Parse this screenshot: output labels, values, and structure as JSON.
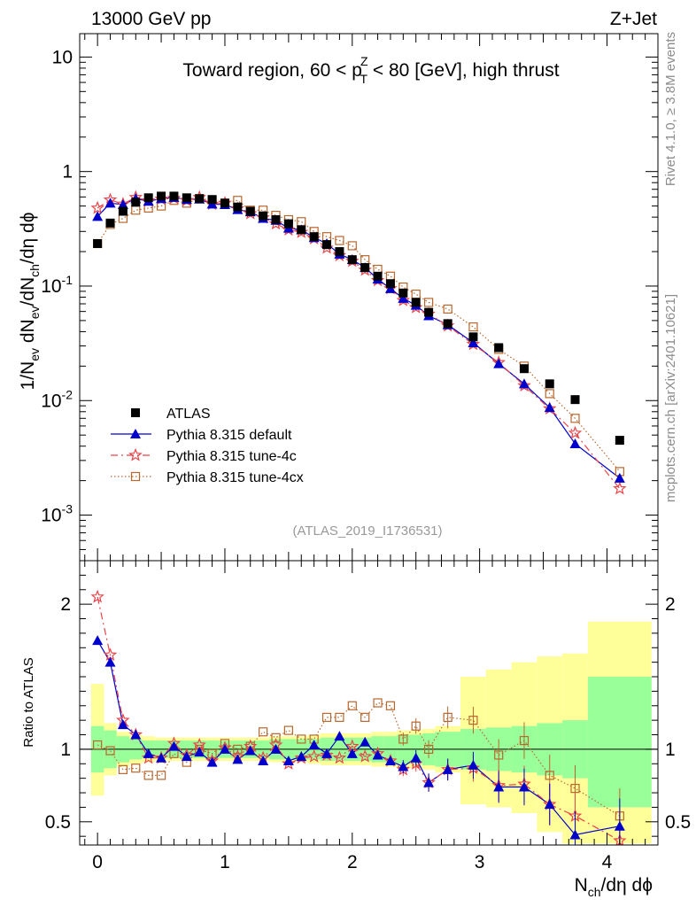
{
  "header": {
    "energy_label": "13000 GeV pp",
    "process_label": "Z+Jet"
  },
  "side_labels": {
    "rivet": "Rivet 4.1.0, ≥ 3.8M events",
    "source": "mcplots.cern.ch [arXiv:2401.10621]"
  },
  "colors": {
    "atlas": "#000000",
    "default": "#0000cc",
    "tune4c": "#e8454a",
    "tune4cx": "#b8672e",
    "band_inner": "#99ff99",
    "band_outer": "#ffff99"
  },
  "chart_data": [
    {
      "type": "scatter",
      "panel": "main",
      "title": "Toward region, 60 < p_T^Z < 80 [GeV], high thrust",
      "title_parts": [
        "Toward region, 60 < p",
        "Z",
        "T",
        " < 80 [GeV], high thrust"
      ],
      "ylabel": "1/N_ev dN_ev/dN_ch/dη dϕ",
      "ylabel_parts": [
        "1/N",
        "ev",
        " dN",
        "ev",
        "/dN",
        "ch",
        "/dη dϕ"
      ],
      "watermark": "(ATLAS_2019_I1736531)",
      "yscale": "log",
      "xlim": [
        -0.14,
        4.4
      ],
      "ylim": [
        0.0004,
        16
      ],
      "yticks": [
        {
          "v": 0.001,
          "base": "10",
          "exp": "-3"
        },
        {
          "v": 0.01,
          "base": "10",
          "exp": "-2"
        },
        {
          "v": 0.1,
          "base": "10",
          "exp": "-1"
        },
        {
          "v": 1,
          "base": "1",
          "exp": ""
        },
        {
          "v": 10,
          "base": "10",
          "exp": ""
        }
      ],
      "legend": [
        {
          "key": "atlas",
          "label": "ATLAS"
        },
        {
          "key": "default",
          "label": "Pythia 8.315 default"
        },
        {
          "key": "tune4c",
          "label": "Pythia 8.315 tune-4c"
        },
        {
          "key": "tune4cx",
          "label": "Pythia 8.315 tune-4cx"
        }
      ],
      "x": [
        0.0,
        0.1,
        0.2,
        0.3,
        0.4,
        0.5,
        0.6,
        0.7,
        0.8,
        0.9,
        1.0,
        1.1,
        1.2,
        1.3,
        1.4,
        1.5,
        1.6,
        1.7,
        1.8,
        1.9,
        2.0,
        2.1,
        2.2,
        2.3,
        2.4,
        2.5,
        2.6,
        2.75,
        2.95,
        3.15,
        3.35,
        3.55,
        3.75,
        4.1
      ],
      "series": [
        {
          "name": "ATLAS",
          "key": "atlas",
          "values": [
            0.235,
            0.355,
            0.45,
            0.54,
            0.59,
            0.61,
            0.61,
            0.59,
            0.58,
            0.57,
            0.53,
            0.49,
            0.45,
            0.41,
            0.38,
            0.35,
            0.31,
            0.27,
            0.23,
            0.2,
            0.17,
            0.145,
            0.122,
            0.105,
            0.087,
            0.072,
            0.059,
            0.047,
            0.036,
            0.029,
            0.019,
            0.014,
            0.0102,
            0.0045
          ]
        },
        {
          "name": "Pythia 8.315 default",
          "key": "default",
          "values": [
            0.405,
            0.53,
            0.515,
            0.58,
            0.55,
            0.58,
            0.595,
            0.57,
            0.575,
            0.52,
            0.515,
            0.465,
            0.445,
            0.39,
            0.375,
            0.32,
            0.31,
            0.265,
            0.235,
            0.19,
            0.17,
            0.145,
            0.115,
            0.095,
            0.078,
            0.068,
            0.055,
            0.046,
            0.032,
            0.021,
            0.014,
            0.0087,
            0.0042,
            0.0021
          ]
        },
        {
          "name": "Pythia 8.315 tune-4c",
          "key": "tune4c",
          "values": [
            0.48,
            0.565,
            0.52,
            0.595,
            0.555,
            0.575,
            0.585,
            0.56,
            0.595,
            0.52,
            0.53,
            0.475,
            0.43,
            0.395,
            0.35,
            0.31,
            0.295,
            0.26,
            0.215,
            0.185,
            0.165,
            0.138,
            0.112,
            0.095,
            0.075,
            0.065,
            0.057,
            0.045,
            0.031,
            0.0215,
            0.0135,
            0.0085,
            0.0052,
            0.0017
          ]
        },
        {
          "name": "Pythia 8.315 tune-4cx",
          "key": "tune4cx",
          "values": [
            0.235,
            0.345,
            0.39,
            0.46,
            0.48,
            0.5,
            0.56,
            0.53,
            0.58,
            0.565,
            0.53,
            0.56,
            0.46,
            0.46,
            0.415,
            0.38,
            0.365,
            0.3,
            0.27,
            0.25,
            0.225,
            0.17,
            0.14,
            0.122,
            0.098,
            0.085,
            0.072,
            0.063,
            0.044,
            0.028,
            0.02,
            0.0115,
            0.007,
            0.0024
          ]
        }
      ]
    },
    {
      "type": "scatter",
      "panel": "ratio",
      "ylabel": "Ratio to ATLAS",
      "xlabel": "N_ch/dη dϕ",
      "xlabel_parts": [
        "N",
        "ch",
        "/dη dϕ"
      ],
      "xlim": [
        -0.14,
        4.4
      ],
      "ylim": [
        0.34,
        2.3
      ],
      "xticks": [
        0,
        1,
        2,
        3,
        4
      ],
      "yticks": [
        0.5,
        1,
        2
      ],
      "reference_line": 1,
      "band_edges": [
        -0.05,
        0.05,
        0.15,
        0.25,
        0.35,
        0.45,
        0.55,
        0.65,
        0.75,
        0.85,
        0.95,
        1.05,
        1.15,
        1.25,
        1.35,
        1.45,
        1.55,
        1.65,
        1.75,
        1.85,
        1.95,
        2.05,
        2.15,
        2.25,
        2.35,
        2.45,
        2.55,
        2.65,
        2.85,
        3.05,
        3.25,
        3.45,
        3.65,
        3.85,
        4.35
      ],
      "band_inner": [
        [
          0.84,
          1.16
        ],
        [
          0.87,
          1.13
        ],
        [
          0.91,
          1.09
        ],
        [
          0.93,
          1.07
        ],
        [
          0.94,
          1.06
        ],
        [
          0.94,
          1.06
        ],
        [
          0.94,
          1.06
        ],
        [
          0.94,
          1.06
        ],
        [
          0.94,
          1.06
        ],
        [
          0.94,
          1.06
        ],
        [
          0.94,
          1.06
        ],
        [
          0.94,
          1.06
        ],
        [
          0.94,
          1.06
        ],
        [
          0.94,
          1.06
        ],
        [
          0.93,
          1.07
        ],
        [
          0.93,
          1.07
        ],
        [
          0.93,
          1.07
        ],
        [
          0.93,
          1.07
        ],
        [
          0.92,
          1.08
        ],
        [
          0.92,
          1.08
        ],
        [
          0.92,
          1.08
        ],
        [
          0.92,
          1.08
        ],
        [
          0.91,
          1.09
        ],
        [
          0.91,
          1.09
        ],
        [
          0.9,
          1.1
        ],
        [
          0.9,
          1.1
        ],
        [
          0.89,
          1.11
        ],
        [
          0.88,
          1.12
        ],
        [
          0.86,
          1.14
        ],
        [
          0.85,
          1.15
        ],
        [
          0.84,
          1.16
        ],
        [
          0.82,
          1.18
        ],
        [
          0.8,
          1.2
        ],
        [
          0.6,
          1.5
        ]
      ],
      "band_outer": [
        [
          0.68,
          1.45
        ],
        [
          0.82,
          1.18
        ],
        [
          0.88,
          1.12
        ],
        [
          0.9,
          1.1
        ],
        [
          0.91,
          1.09
        ],
        [
          0.92,
          1.08
        ],
        [
          0.92,
          1.08
        ],
        [
          0.92,
          1.08
        ],
        [
          0.92,
          1.08
        ],
        [
          0.92,
          1.08
        ],
        [
          0.92,
          1.08
        ],
        [
          0.92,
          1.08
        ],
        [
          0.92,
          1.08
        ],
        [
          0.92,
          1.08
        ],
        [
          0.91,
          1.09
        ],
        [
          0.91,
          1.09
        ],
        [
          0.91,
          1.09
        ],
        [
          0.9,
          1.1
        ],
        [
          0.89,
          1.11
        ],
        [
          0.89,
          1.11
        ],
        [
          0.89,
          1.11
        ],
        [
          0.89,
          1.11
        ],
        [
          0.88,
          1.12
        ],
        [
          0.88,
          1.12
        ],
        [
          0.87,
          1.13
        ],
        [
          0.87,
          1.13
        ],
        [
          0.86,
          1.14
        ],
        [
          0.84,
          1.16
        ],
        [
          0.62,
          1.5
        ],
        [
          0.6,
          1.55
        ],
        [
          0.56,
          1.6
        ],
        [
          0.43,
          1.64
        ],
        [
          0.35,
          1.66
        ],
        [
          0.35,
          1.88
        ]
      ],
      "x": [
        0.0,
        0.1,
        0.2,
        0.3,
        0.4,
        0.5,
        0.6,
        0.7,
        0.8,
        0.9,
        1.0,
        1.1,
        1.2,
        1.3,
        1.4,
        1.5,
        1.6,
        1.7,
        1.8,
        1.9,
        2.0,
        2.1,
        2.2,
        2.3,
        2.4,
        2.5,
        2.6,
        2.75,
        2.95,
        3.15,
        3.35,
        3.55,
        3.75,
        4.1
      ],
      "series": [
        {
          "name": "Pythia 8.315 default",
          "key": "default",
          "values": [
            1.75,
            1.6,
            1.17,
            1.1,
            0.97,
            0.94,
            1.02,
            0.95,
            0.98,
            0.91,
            1.0,
            0.93,
            0.99,
            0.92,
            1.0,
            0.92,
            0.95,
            1.03,
            0.97,
            1.09,
            0.97,
            1.05,
            0.96,
            0.92,
            0.88,
            0.94,
            0.77,
            0.86,
            0.89,
            0.74,
            0.74,
            0.62,
            0.41,
            0.47
          ]
        },
        {
          "name": "Pythia 8.315 tune-4c",
          "key": "tune4c",
          "values": [
            2.05,
            1.65,
            1.2,
            1.1,
            0.94,
            0.94,
            1.04,
            0.96,
            1.03,
            0.92,
            1.01,
            0.95,
            1.02,
            0.94,
            1.03,
            0.9,
            0.94,
            0.95,
            0.96,
            0.94,
            1.02,
            0.95,
            0.97,
            0.92,
            0.86,
            0.9,
            0.77,
            0.86,
            0.87,
            0.75,
            0.76,
            0.62,
            0.54,
            0.37
          ]
        },
        {
          "name": "Pythia 8.315 tune-4cx",
          "key": "tune4cx",
          "values": [
            1.03,
            0.99,
            0.86,
            0.87,
            0.82,
            0.82,
            0.97,
            0.91,
            1.0,
            0.97,
            1.04,
            1.0,
            1.02,
            1.12,
            1.08,
            1.13,
            1.07,
            1.07,
            1.22,
            1.22,
            1.3,
            1.22,
            1.32,
            1.3,
            1.07,
            1.16,
            1.0,
            1.22,
            1.2,
            0.96,
            1.06,
            0.82,
            0.73,
            0.54
          ]
        }
      ]
    }
  ]
}
